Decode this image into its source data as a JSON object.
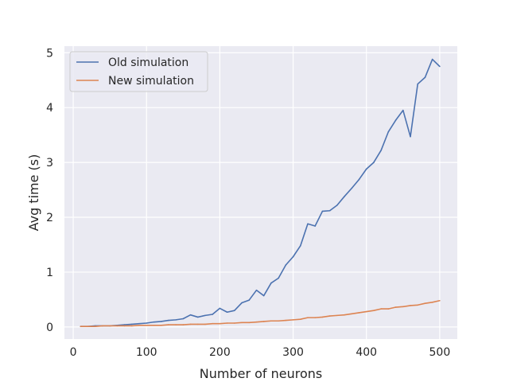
{
  "chart_data": {
    "type": "line",
    "title": "",
    "xlabel": "Number of neurons",
    "ylabel": "Avg time (s)",
    "xlim": [
      -12,
      524
    ],
    "ylim": [
      -0.22,
      5.12
    ],
    "xticks": [
      0,
      100,
      200,
      300,
      400,
      500
    ],
    "yticks": [
      0,
      1,
      2,
      3,
      4,
      5
    ],
    "grid": true,
    "legend_position": "top-left",
    "series": [
      {
        "name": "Old simulation",
        "color": "#4c72b0",
        "x": [
          10,
          20,
          30,
          40,
          50,
          60,
          70,
          80,
          90,
          100,
          110,
          120,
          130,
          140,
          150,
          160,
          170,
          180,
          190,
          200,
          210,
          220,
          230,
          240,
          250,
          260,
          270,
          280,
          290,
          300,
          310,
          320,
          330,
          340,
          350,
          360,
          370,
          380,
          390,
          400,
          410,
          420,
          430,
          440,
          450,
          460,
          470,
          480,
          490,
          500
        ],
        "y": [
          0.01,
          0.01,
          0.02,
          0.02,
          0.02,
          0.03,
          0.04,
          0.05,
          0.06,
          0.07,
          0.09,
          0.1,
          0.12,
          0.13,
          0.15,
          0.22,
          0.18,
          0.21,
          0.23,
          0.34,
          0.27,
          0.3,
          0.44,
          0.49,
          0.67,
          0.57,
          0.8,
          0.89,
          1.13,
          1.28,
          1.48,
          1.88,
          1.84,
          2.11,
          2.12,
          2.22,
          2.38,
          2.53,
          2.69,
          2.88,
          3.0,
          3.22,
          3.56,
          3.77,
          3.95,
          3.47,
          4.43,
          4.55,
          4.88,
          4.75
        ]
      },
      {
        "name": "New simulation",
        "color": "#dd8452",
        "x": [
          10,
          20,
          30,
          40,
          50,
          60,
          70,
          80,
          90,
          100,
          110,
          120,
          130,
          140,
          150,
          160,
          170,
          180,
          190,
          200,
          210,
          220,
          230,
          240,
          250,
          260,
          270,
          280,
          290,
          300,
          310,
          320,
          330,
          340,
          350,
          360,
          370,
          380,
          390,
          400,
          410,
          420,
          430,
          440,
          450,
          460,
          470,
          480,
          490,
          500
        ],
        "y": [
          0.01,
          0.01,
          0.01,
          0.02,
          0.02,
          0.02,
          0.02,
          0.02,
          0.03,
          0.03,
          0.03,
          0.03,
          0.04,
          0.04,
          0.04,
          0.05,
          0.05,
          0.05,
          0.06,
          0.06,
          0.07,
          0.07,
          0.08,
          0.08,
          0.09,
          0.1,
          0.11,
          0.11,
          0.12,
          0.13,
          0.14,
          0.17,
          0.17,
          0.18,
          0.2,
          0.21,
          0.22,
          0.24,
          0.26,
          0.28,
          0.3,
          0.33,
          0.33,
          0.36,
          0.37,
          0.39,
          0.4,
          0.43,
          0.45,
          0.48
        ]
      }
    ]
  }
}
